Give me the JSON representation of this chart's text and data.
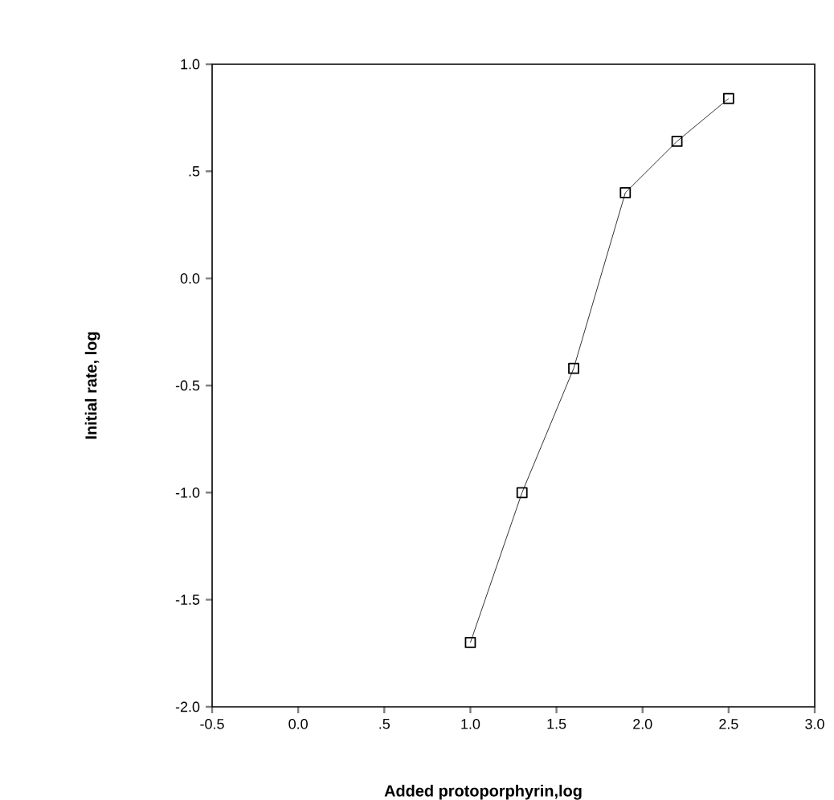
{
  "chart_data": {
    "type": "line",
    "xlabel": "Added protoporphyrin,log",
    "ylabel": "Initial rate, log",
    "x": [
      1.0,
      1.3,
      1.6,
      1.9,
      2.2,
      2.5
    ],
    "values": [
      -1.7,
      -1.0,
      -0.42,
      0.4,
      0.64,
      0.84
    ],
    "color": "#000000",
    "marker": "square",
    "line_style": "solid",
    "grid": false,
    "xlim": [
      -0.5,
      3.0
    ],
    "ylim": [
      -2.0,
      1.0
    ],
    "xticks": [
      -0.5,
      {
        "value": 0.0,
        "label": "0.0"
      },
      {
        "value": 0.5,
        "label": ".5"
      },
      {
        "value": 1.0,
        "label": "1.0"
      },
      {
        "value": 1.5,
        "label": "1.5"
      },
      {
        "value": 2.0,
        "label": "2.0"
      },
      2.5,
      {
        "value": 3.0,
        "label": "3.0"
      }
    ],
    "yticks": [
      {
        "value": -2.0,
        "label": "-2.0"
      },
      -1.5,
      {
        "value": -1.0,
        "label": "-1.0"
      },
      -0.5,
      {
        "value": 0.0,
        "label": "0.0"
      },
      {
        "value": 0.5,
        "label": ".5"
      },
      {
        "value": 1.0,
        "label": "1.0"
      }
    ]
  }
}
